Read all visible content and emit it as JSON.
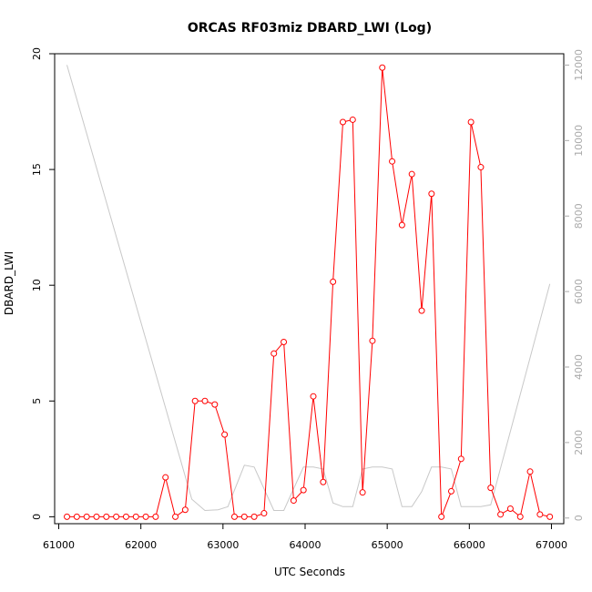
{
  "chart_data": {
    "type": "line",
    "title": "ORCAS RF03miz DBARD_LWI (Log)",
    "xlabel": "UTC Seconds",
    "ylabel": "DBARD_LWI",
    "xlim": [
      60950,
      67150
    ],
    "ylim": [
      -0.3,
      20.0
    ],
    "y2lim": [
      -150,
      12300
    ],
    "x_ticks": [
      "61000",
      "62000",
      "63000",
      "64000",
      "65000",
      "66000",
      "67000"
    ],
    "y_ticks": [
      "0",
      "5",
      "10",
      "15",
      "20"
    ],
    "y2_ticks": [
      "0",
      "2000",
      "4000",
      "6000",
      "8000",
      "10000",
      "12000"
    ],
    "grid": false,
    "series": [
      {
        "color": "#ff0000",
        "marker": "open-circle",
        "axis": "left",
        "x": [
          61100,
          61220,
          61340,
          61460,
          61580,
          61700,
          61820,
          61940,
          62060,
          62180,
          62300,
          62420,
          62540,
          62660,
          62780,
          62900,
          63020,
          63140,
          63260,
          63380,
          63500,
          63620,
          63740,
          63860,
          63980,
          64100,
          64220,
          64340,
          64460,
          64580,
          64700,
          64820,
          64940,
          65060,
          65180,
          65300,
          65420,
          65540,
          65660,
          65780,
          65900,
          66020,
          66140,
          66260,
          66380,
          66500,
          66620,
          66740,
          66860,
          66980
        ],
        "y": [
          0.0,
          0.0,
          0.0,
          0.0,
          0.0,
          0.0,
          0.0,
          0.0,
          0.0,
          0.0,
          1.7,
          0.0,
          0.3,
          5.0,
          5.0,
          4.85,
          3.55,
          0.0,
          0.0,
          0.0,
          0.15,
          7.05,
          7.55,
          0.7,
          1.15,
          5.2,
          1.5,
          10.15,
          17.05,
          17.15,
          1.05,
          7.6,
          19.4,
          15.35,
          12.6,
          14.8,
          8.9,
          13.95,
          0.0,
          1.1,
          2.5,
          17.05,
          15.1,
          1.25,
          0.1,
          0.35,
          0.0,
          1.95,
          0.1,
          0.0
        ]
      },
      {
        "color": "#c8c8c8",
        "marker": "none",
        "axis": "right",
        "x": [
          61100,
          62620,
          62780,
          62940,
          63060,
          63260,
          63380,
          63620,
          63740,
          63980,
          64100,
          64220,
          64340,
          64460,
          64580,
          64700,
          64820,
          64940,
          65060,
          65180,
          65300,
          65420,
          65540,
          65660,
          65780,
          65900,
          66020,
          66140,
          66260,
          66980
        ],
        "y": [
          12000,
          500,
          200,
          220,
          300,
          1400,
          1350,
          200,
          200,
          1350,
          1350,
          1300,
          400,
          300,
          300,
          1300,
          1350,
          1350,
          1300,
          300,
          300,
          700,
          1350,
          1350,
          1300,
          300,
          300,
          300,
          350,
          6200
        ]
      }
    ]
  }
}
